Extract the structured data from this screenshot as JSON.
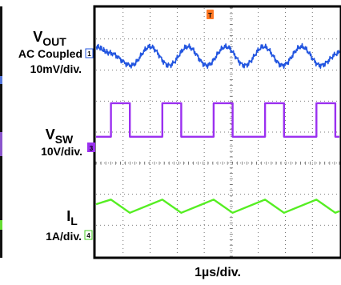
{
  "chart_data": {
    "type": "line",
    "title": "",
    "xlabel": "1µs/div.",
    "grid": true,
    "trigger_marker": "T",
    "colors": {
      "vout": "#2255e0",
      "vsw": "#9b30f0",
      "il": "#55ee22",
      "trigger": "#ff7722",
      "grid": "#555555",
      "frame": "#000000"
    },
    "series": [
      {
        "name": "VOUT",
        "label_main": "V",
        "label_sub": "OUT",
        "label_line2": "AC Coupled",
        "label_line3": "10mV/div.",
        "channel": "1",
        "x": [
          0,
          0.5,
          1.3,
          2.0,
          2.7,
          3.4,
          4.1,
          4.8,
          5.5,
          6.2,
          6.9,
          7.6,
          8.3,
          9.0
        ],
        "values": [
          0.3,
          0.1,
          -0.3,
          0.3,
          -0.3,
          0.3,
          -0.3,
          0.3,
          -0.3,
          0.3,
          -0.3,
          0.3,
          -0.3,
          0.1
        ]
      },
      {
        "name": "VSW",
        "label_main": "V",
        "label_sub": "SW",
        "label_line2": "10V/div.",
        "channel": "3",
        "x": [
          0,
          0.55,
          0.55,
          1.25,
          1.25,
          2.45,
          2.45,
          3.15,
          3.15,
          4.35,
          4.35,
          5.05,
          5.05,
          6.25,
          6.25,
          6.95,
          6.95,
          8.15,
          8.15,
          8.85,
          8.85,
          9.0
        ],
        "values": [
          -0.55,
          -0.55,
          1.25,
          1.25,
          -0.55,
          -0.55,
          1.25,
          1.25,
          -0.55,
          -0.55,
          1.25,
          1.25,
          -0.55,
          -0.55,
          1.25,
          1.25,
          -0.55,
          -0.55,
          1.25,
          1.25,
          -0.55,
          -0.55
        ]
      },
      {
        "name": "IL",
        "label_main": "I",
        "label_sub": "L",
        "label_line2": "1A/div.",
        "channel": "4",
        "x": [
          0,
          0.55,
          1.25,
          2.45,
          3.15,
          4.35,
          5.05,
          6.25,
          6.95,
          8.15,
          8.85,
          9.0
        ],
        "values": [
          0.15,
          0.45,
          -0.4,
          0.45,
          -0.4,
          0.45,
          -0.4,
          0.45,
          -0.4,
          0.45,
          -0.4,
          -0.3
        ]
      }
    ]
  }
}
